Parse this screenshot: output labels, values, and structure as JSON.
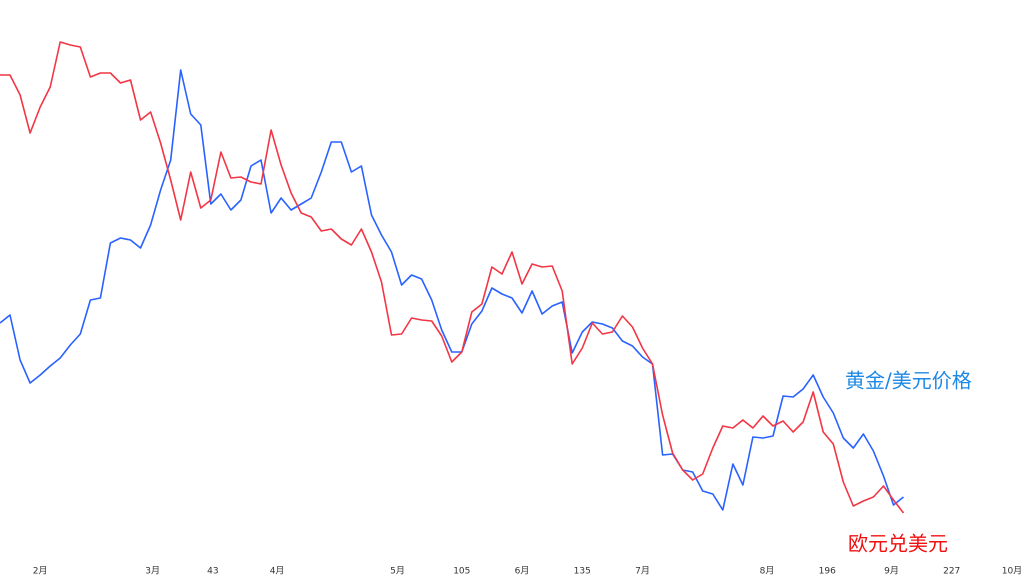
{
  "chart_data": {
    "type": "line",
    "x": [
      -10,
      -7.5,
      -5,
      -2.5,
      0,
      2.5,
      5,
      7.5,
      10,
      12.5,
      15,
      17.5,
      20,
      22.5,
      25,
      27.5,
      30,
      32.5,
      35,
      37.5,
      40,
      42.5,
      45,
      47.5,
      50,
      52.5,
      55,
      57.5,
      60,
      62.5,
      65,
      67.5,
      70,
      72.5,
      75,
      77.5,
      80,
      82.5,
      85,
      87.5,
      90,
      92.5,
      95,
      97.5,
      100,
      102.5,
      105,
      107.5,
      110,
      112.5,
      115,
      117.5,
      120,
      122.5,
      125,
      127.5,
      130,
      132.5,
      135,
      137.5,
      140,
      142.5,
      145,
      147.5,
      150,
      152.5,
      155,
      157.5,
      160,
      162.5,
      165,
      167.5,
      170,
      172.5,
      175,
      177.5,
      180,
      182.5,
      185,
      187.5,
      190,
      192.5,
      195,
      197.5,
      200,
      202.5,
      205,
      207.5,
      210,
      212.5,
      215
    ],
    "xlim": [
      -10,
      245
    ],
    "xticks": [
      {
        "value": 0,
        "label": "2月"
      },
      {
        "value": 28,
        "label": "3月"
      },
      43,
      {
        "value": 59,
        "label": "4月"
      },
      {
        "value": 89,
        "label": "5月"
      },
      105,
      {
        "value": 120,
        "label": "6月"
      },
      135,
      {
        "value": 150,
        "label": "7月"
      },
      {
        "value": 181,
        "label": "8月"
      },
      196,
      {
        "value": 212,
        "label": "9月"
      },
      227,
      {
        "value": 242,
        "label": "10月"
      }
    ],
    "ylim": [
      0,
      540
    ],
    "series": [
      {
        "name": "黄金/美元价格",
        "color": "#2962ff",
        "label_color": "#1e88e5",
        "values": [
          217,
          225,
          180,
          157,
          165,
          174,
          182,
          195,
          206,
          240,
          242,
          297,
          302,
          300,
          292,
          315,
          350,
          380,
          470,
          426,
          415,
          336,
          346,
          330,
          340,
          374,
          380,
          327,
          342,
          330,
          336,
          342,
          368,
          398,
          398,
          368,
          374,
          325,
          305,
          288,
          255,
          265,
          261,
          240,
          210,
          188,
          188,
          216,
          229,
          252,
          246,
          242,
          227,
          249,
          226,
          234,
          238,
          187,
          208,
          218,
          216,
          212,
          199,
          194,
          183,
          176,
          85,
          86,
          70,
          68,
          49,
          46,
          30,
          76,
          55,
          103,
          102,
          104,
          144,
          143,
          151,
          165,
          143,
          127,
          102,
          92,
          106,
          89,
          64,
          35,
          43
        ]
      },
      {
        "name": "欧元兑美元",
        "color": "#f23645",
        "label_color": "#f01010",
        "values": [
          465,
          465,
          445,
          407,
          433,
          453,
          498,
          495,
          493,
          463,
          467,
          467,
          457,
          460,
          420,
          428,
          397,
          360,
          320,
          368,
          332,
          340,
          388,
          362,
          363,
          358,
          356,
          410,
          375,
          347,
          327,
          323,
          309,
          311,
          301,
          295,
          311,
          288,
          258,
          205,
          206,
          222,
          220,
          219,
          204,
          178,
          188,
          228,
          236,
          273,
          266,
          288,
          256,
          276,
          273,
          274,
          249,
          176,
          192,
          217,
          206,
          208,
          224,
          213,
          192,
          176,
          125,
          87,
          70,
          60,
          66,
          92,
          114,
          112,
          120,
          112,
          124,
          114,
          119,
          108,
          118,
          148,
          108,
          96,
          58,
          34,
          39,
          43,
          54,
          40,
          27
        ]
      }
    ]
  }
}
